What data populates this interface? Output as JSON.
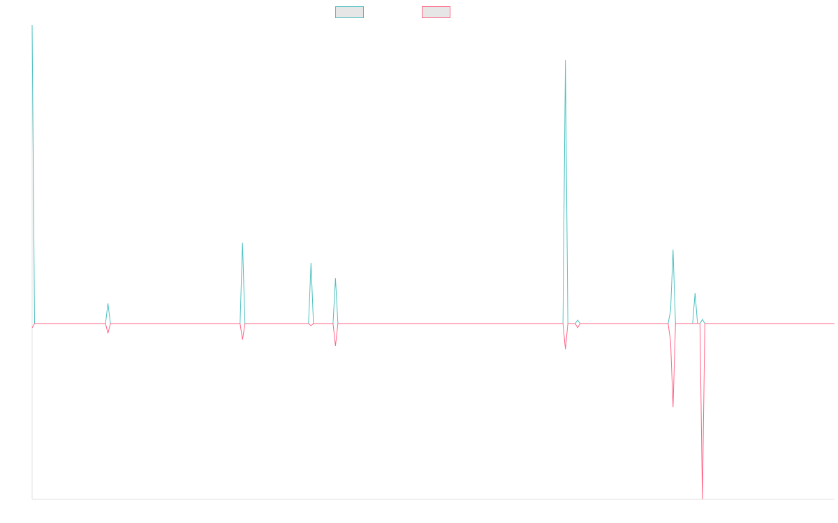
{
  "chart_data": {
    "type": "line",
    "x": [
      0,
      1,
      30,
      31,
      32,
      85,
      86,
      87,
      113,
      114,
      115,
      123,
      124,
      125,
      217,
      218,
      219,
      222,
      223,
      224,
      260,
      261,
      262,
      263,
      270,
      271,
      272,
      273,
      274,
      275,
      328
    ],
    "series": [
      {
        "color": "#4bc0c0",
        "values": [
          42.8,
          0,
          0,
          2.9,
          0,
          0,
          11.6,
          0,
          0,
          8.7,
          0,
          0,
          6.5,
          0,
          0,
          37.8,
          0,
          0,
          0.5,
          0,
          0,
          1.9,
          10.6,
          0,
          0,
          4.4,
          0,
          0,
          0.6,
          0,
          0
        ]
      },
      {
        "color": "#ff6384",
        "values": [
          -0.6,
          0,
          0,
          -1.4,
          0,
          0,
          -2.3,
          0,
          0,
          -0.3,
          0,
          0,
          -3.2,
          0,
          0,
          -3.7,
          0,
          0,
          -0.6,
          0,
          0,
          -2.6,
          -12,
          0,
          0,
          0,
          0,
          0,
          -25.2,
          0,
          0
        ]
      }
    ],
    "legend_fill": "#e6e6e6",
    "xlim": [
      0,
      328
    ],
    "ylim": [
      -25.2,
      42.8
    ]
  }
}
